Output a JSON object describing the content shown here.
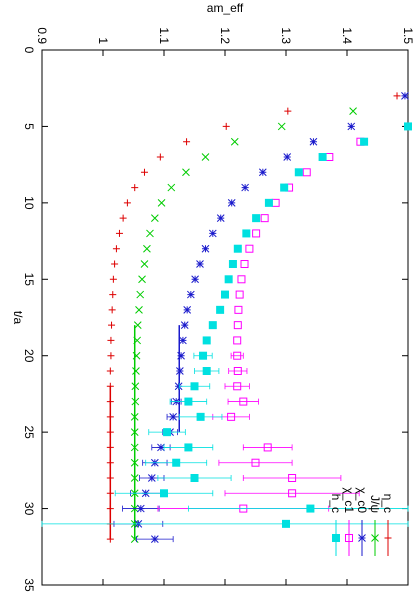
{
  "chart_data": {
    "type": "scatter",
    "orientation": "rotated-90-clockwise",
    "title": "",
    "xlabel": "t/a",
    "ylabel": "am_eff",
    "xlim": [
      0,
      35
    ],
    "ylim": [
      0.9,
      1.5
    ],
    "x_ticks": [
      "0",
      "5",
      "10",
      "15",
      "20",
      "25",
      "30",
      "35"
    ],
    "y_ticks": [
      "0.9",
      "1",
      "1.1",
      "1.2",
      "1.3",
      "1.4",
      "1.5"
    ],
    "grid": false,
    "legend_position": "top-right",
    "series": [
      {
        "name": "η_c",
        "color": "#dd0000",
        "marker": "plus",
        "points": [
          {
            "x": 3,
            "y": 1.482
          },
          {
            "x": 4,
            "y": 1.303
          },
          {
            "x": 5,
            "y": 1.202
          },
          {
            "x": 6,
            "y": 1.137
          },
          {
            "x": 7,
            "y": 1.094
          },
          {
            "x": 8,
            "y": 1.068
          },
          {
            "x": 9,
            "y": 1.052
          },
          {
            "x": 10,
            "y": 1.04
          },
          {
            "x": 11,
            "y": 1.033
          },
          {
            "x": 12,
            "y": 1.027
          },
          {
            "x": 13,
            "y": 1.022
          },
          {
            "x": 14,
            "y": 1.019
          },
          {
            "x": 15,
            "y": 1.017
          },
          {
            "x": 16,
            "y": 1.016
          },
          {
            "x": 17,
            "y": 1.015
          },
          {
            "x": 18,
            "y": 1.014
          },
          {
            "x": 19,
            "y": 1.013
          },
          {
            "x": 20,
            "y": 1.013
          },
          {
            "x": 21,
            "y": 1.012
          },
          {
            "x": 22,
            "y": 1.012
          },
          {
            "x": 23,
            "y": 1.012
          },
          {
            "x": 24,
            "y": 1.012
          },
          {
            "x": 25,
            "y": 1.012
          },
          {
            "x": 26,
            "y": 1.012
          },
          {
            "x": 27,
            "y": 1.012
          },
          {
            "x": 28,
            "y": 1.012
          },
          {
            "x": 29,
            "y": 1.012
          },
          {
            "x": 30,
            "y": 1.012
          },
          {
            "x": 31,
            "y": 1.012
          },
          {
            "x": 32,
            "y": 1.012
          }
        ]
      },
      {
        "name": "J/ψ",
        "color": "#00cc00",
        "marker": "x",
        "points": [
          {
            "x": 4,
            "y": 1.41
          },
          {
            "x": 5,
            "y": 1.293
          },
          {
            "x": 6,
            "y": 1.216
          },
          {
            "x": 7,
            "y": 1.168
          },
          {
            "x": 8,
            "y": 1.136
          },
          {
            "x": 9,
            "y": 1.112
          },
          {
            "x": 10,
            "y": 1.096
          },
          {
            "x": 11,
            "y": 1.085
          },
          {
            "x": 12,
            "y": 1.077
          },
          {
            "x": 13,
            "y": 1.072
          },
          {
            "x": 14,
            "y": 1.068
          },
          {
            "x": 15,
            "y": 1.064
          },
          {
            "x": 16,
            "y": 1.061
          },
          {
            "x": 17,
            "y": 1.059
          },
          {
            "x": 18,
            "y": 1.057
          },
          {
            "x": 19,
            "y": 1.056
          },
          {
            "x": 20,
            "y": 1.055
          },
          {
            "x": 21,
            "y": 1.054
          },
          {
            "x": 22,
            "y": 1.053
          },
          {
            "x": 23,
            "y": 1.053
          },
          {
            "x": 24,
            "y": 1.052
          },
          {
            "x": 25,
            "y": 1.052
          },
          {
            "x": 26,
            "y": 1.052
          },
          {
            "x": 27,
            "y": 1.052
          },
          {
            "x": 28,
            "y": 1.052
          },
          {
            "x": 29,
            "y": 1.052
          },
          {
            "x": 30,
            "y": 1.052
          },
          {
            "x": 31,
            "y": 1.052
          },
          {
            "x": 32,
            "y": 1.052
          }
        ]
      },
      {
        "name": "χ_c0",
        "color": "#1a1acc",
        "marker": "star",
        "points": [
          {
            "x": 3,
            "y": 1.495
          },
          {
            "x": 5,
            "y": 1.407
          },
          {
            "x": 6,
            "y": 1.345
          },
          {
            "x": 7,
            "y": 1.302
          },
          {
            "x": 8,
            "y": 1.262
          },
          {
            "x": 9,
            "y": 1.233
          },
          {
            "x": 10,
            "y": 1.211
          },
          {
            "x": 11,
            "y": 1.193
          },
          {
            "x": 12,
            "y": 1.18
          },
          {
            "x": 13,
            "y": 1.168
          },
          {
            "x": 14,
            "y": 1.159
          },
          {
            "x": 15,
            "y": 1.151
          },
          {
            "x": 16,
            "y": 1.144
          },
          {
            "x": 17,
            "y": 1.138
          },
          {
            "x": 18,
            "y": 1.134
          },
          {
            "x": 19,
            "y": 1.131
          },
          {
            "x": 20,
            "y": 1.128
          },
          {
            "x": 21,
            "y": 1.126
          },
          {
            "x": 22,
            "y": 1.124
          },
          {
            "x": 23,
            "y": 1.12,
            "err": 0.008
          },
          {
            "x": 24,
            "y": 1.115,
            "err": 0.01
          },
          {
            "x": 25,
            "y": 1.11,
            "err": 0.012
          },
          {
            "x": 26,
            "y": 1.095,
            "err": 0.015
          },
          {
            "x": 27,
            "y": 1.085,
            "err": 0.02
          },
          {
            "x": 28,
            "y": 1.08,
            "err": 0.02
          },
          {
            "x": 29,
            "y": 1.07,
            "err": 0.025
          },
          {
            "x": 30,
            "y": 1.062,
            "err": 0.03
          },
          {
            "x": 31,
            "y": 1.058,
            "err": 0.04
          },
          {
            "x": 32,
            "y": 1.085,
            "err": 0.03
          }
        ]
      },
      {
        "name": "χ_c1",
        "color": "#ff00ff",
        "marker": "open-square",
        "points": [
          {
            "x": 6,
            "y": 1.422
          },
          {
            "x": 7,
            "y": 1.371
          },
          {
            "x": 8,
            "y": 1.334
          },
          {
            "x": 9,
            "y": 1.305
          },
          {
            "x": 10,
            "y": 1.283
          },
          {
            "x": 11,
            "y": 1.265
          },
          {
            "x": 12,
            "y": 1.251
          },
          {
            "x": 13,
            "y": 1.24
          },
          {
            "x": 14,
            "y": 1.232
          },
          {
            "x": 15,
            "y": 1.227
          },
          {
            "x": 16,
            "y": 1.224
          },
          {
            "x": 17,
            "y": 1.222
          },
          {
            "x": 18,
            "y": 1.221
          },
          {
            "x": 19,
            "y": 1.22
          },
          {
            "x": 20,
            "y": 1.22,
            "err": 0.01
          },
          {
            "x": 21,
            "y": 1.221,
            "err": 0.015
          },
          {
            "x": 22,
            "y": 1.22,
            "err": 0.02
          },
          {
            "x": 23,
            "y": 1.23,
            "err": 0.025
          },
          {
            "x": 24,
            "y": 1.21,
            "err": 0.03
          },
          {
            "x": 26,
            "y": 1.27,
            "err": 0.04
          },
          {
            "x": 27,
            "y": 1.25,
            "err": 0.06
          },
          {
            "x": 28,
            "y": 1.31,
            "err": 0.08
          },
          {
            "x": 29,
            "y": 1.31,
            "err": 0.11
          },
          {
            "x": 30,
            "y": 1.23,
            "err": 0.14
          }
        ]
      },
      {
        "name": "h_c",
        "color": "#00e0e0",
        "marker": "filled-square",
        "points": [
          {
            "x": 5,
            "y": 1.5
          },
          {
            "x": 6,
            "y": 1.428
          },
          {
            "x": 7,
            "y": 1.36
          },
          {
            "x": 8,
            "y": 1.321
          },
          {
            "x": 9,
            "y": 1.297
          },
          {
            "x": 10,
            "y": 1.272
          },
          {
            "x": 11,
            "y": 1.251
          },
          {
            "x": 12,
            "y": 1.235
          },
          {
            "x": 13,
            "y": 1.221
          },
          {
            "x": 14,
            "y": 1.213
          },
          {
            "x": 15,
            "y": 1.206
          },
          {
            "x": 16,
            "y": 1.2
          },
          {
            "x": 17,
            "y": 1.192
          },
          {
            "x": 18,
            "y": 1.18
          },
          {
            "x": 19,
            "y": 1.17
          },
          {
            "x": 20,
            "y": 1.164,
            "err": 0.015
          },
          {
            "x": 21,
            "y": 1.17,
            "err": 0.02
          },
          {
            "x": 22,
            "y": 1.15,
            "err": 0.025
          },
          {
            "x": 23,
            "y": 1.14,
            "err": 0.03
          },
          {
            "x": 24,
            "y": 1.16,
            "err": 0.035
          },
          {
            "x": 25,
            "y": 1.105,
            "err": 0.03
          },
          {
            "x": 26,
            "y": 1.14,
            "err": 0.04
          },
          {
            "x": 27,
            "y": 1.12,
            "err": 0.05
          },
          {
            "x": 28,
            "y": 1.15,
            "err": 0.06
          },
          {
            "x": 29,
            "y": 1.1,
            "err": 0.08
          },
          {
            "x": 30,
            "y": 1.34,
            "err": 0.2
          },
          {
            "x": 31,
            "y": 1.3,
            "err": 0.4
          }
        ]
      }
    ],
    "fit_lines": [
      {
        "color": "#1a1acc",
        "x0": 18,
        "x1": 25,
        "y": 1.125
      },
      {
        "color": "#00cc00",
        "x0": 18,
        "x1": 32,
        "y": 1.052
      },
      {
        "color": "#dd0000",
        "x0": 22,
        "x1": 32,
        "y": 1.012
      }
    ]
  }
}
